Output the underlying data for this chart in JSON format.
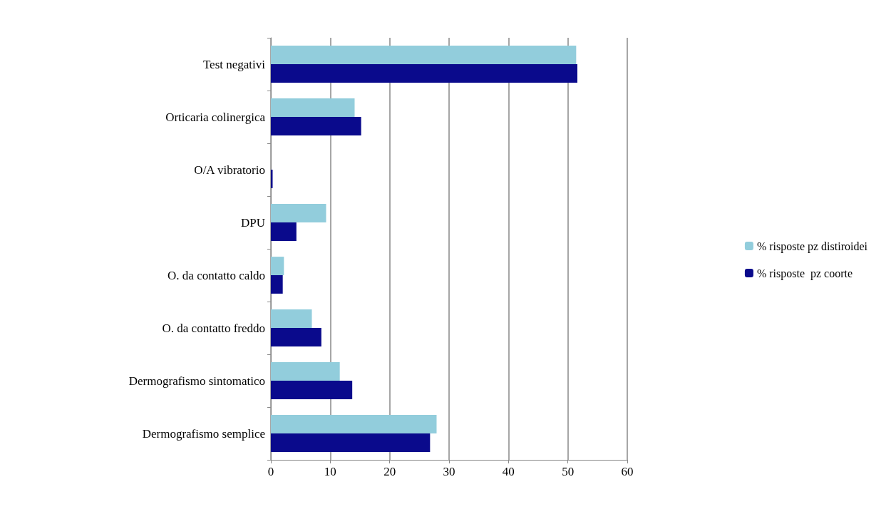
{
  "chart_data": {
    "type": "bar",
    "orientation": "horizontal",
    "categories": [
      "Test negativi",
      "Orticaria colinergica",
      "O/A vibratorio",
      "DPU",
      "O. da contatto caldo",
      "O. da contatto freddo",
      "Dermografismo sintomatico",
      "Dermografismo semplice"
    ],
    "series": [
      {
        "name": "% risposte pz distiroidei",
        "color": "#92cddc",
        "values": [
          51.4,
          14.1,
          0,
          9.3,
          2.2,
          6.9,
          11.6,
          27.9
        ]
      },
      {
        "name": "% risposte  pz coorte",
        "color": "#0a0a8c",
        "values": [
          51.6,
          15.2,
          0.3,
          4.3,
          2.0,
          8.5,
          13.7,
          26.8
        ]
      }
    ],
    "xlim": [
      0,
      60
    ],
    "xticks": [
      0,
      10,
      20,
      30,
      40,
      50,
      60
    ],
    "grid": "x",
    "legend": "right"
  }
}
